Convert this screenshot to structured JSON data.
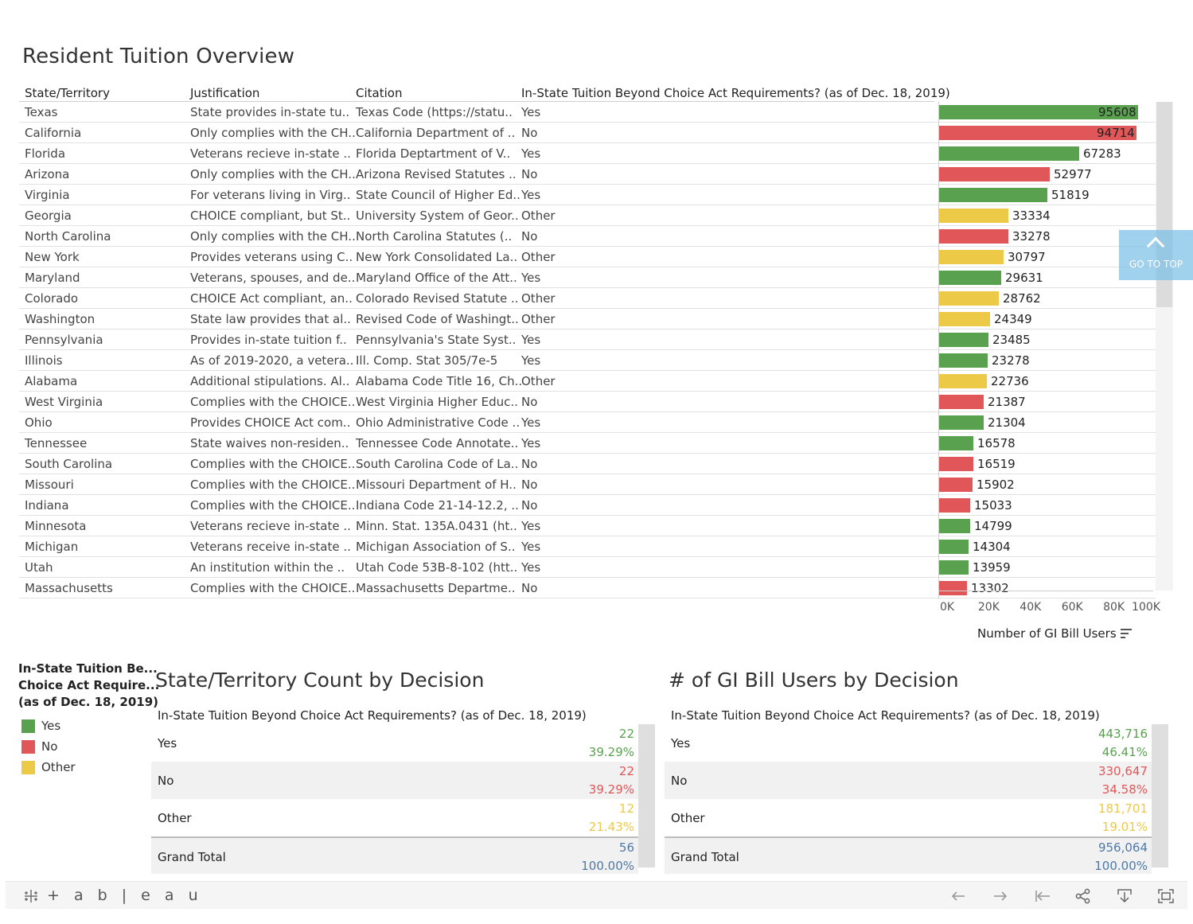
{
  "title": "Resident Tuition Overview",
  "colors": {
    "Yes": "#59a14f",
    "No": "#e15759",
    "Other": "#edc948",
    "total": "#4e79a7"
  },
  "columns": {
    "state": "State/Territory",
    "justification": "Justification",
    "citation": "Citation",
    "decision": "In-State Tuition Beyond Choice Act Requirements? (as of Dec. 18, 2019)"
  },
  "rows": [
    {
      "state": "Texas",
      "justification": "State provides in-state tu..",
      "citation": "Texas Code (https://statu..",
      "decision": "Yes",
      "users": 95608
    },
    {
      "state": "California",
      "justification": "Only complies with the CH..",
      "citation": "California Department of ..",
      "decision": "No",
      "users": 94714
    },
    {
      "state": "Florida",
      "justification": "Veterans recieve in-state ..",
      "citation": "Florida Deptartment of V..",
      "decision": "Yes",
      "users": 67283
    },
    {
      "state": "Arizona",
      "justification": "Only complies with the CH..",
      "citation": "Arizona Revised Statutes ..",
      "decision": "No",
      "users": 52977
    },
    {
      "state": "Virginia",
      "justification": "For veterans living in Virg..",
      "citation": "State Council of Higher Ed..",
      "decision": "Yes",
      "users": 51819
    },
    {
      "state": "Georgia",
      "justification": "CHOICE compliant, but St..",
      "citation": "University System of Geor..",
      "decision": "Other",
      "users": 33334
    },
    {
      "state": "North Carolina",
      "justification": "Only complies with the CH..",
      "citation": "North Carolina Statutes (..",
      "decision": "No",
      "users": 33278
    },
    {
      "state": "New York",
      "justification": "Provides veterans using C..",
      "citation": "New York Consolidated La..",
      "decision": "Other",
      "users": 30797
    },
    {
      "state": "Maryland",
      "justification": "Veterans, spouses, and de..",
      "citation": "Maryland Office of the Att..",
      "decision": "Yes",
      "users": 29631
    },
    {
      "state": "Colorado",
      "justification": "CHOICE Act compliant, an..",
      "citation": "Colorado Revised Statute ..",
      "decision": "Other",
      "users": 28762
    },
    {
      "state": "Washington",
      "justification": "State law provides that al..",
      "citation": "Revised Code of Washingt..",
      "decision": "Other",
      "users": 24349
    },
    {
      "state": "Pennsylvania",
      "justification": "Provides in-state tuition f..",
      "citation": "Pennsylvania's State Syst..",
      "decision": "Yes",
      "users": 23485
    },
    {
      "state": "Illinois",
      "justification": "As of 2019-2020, a vetera..",
      "citation": "Ill. Comp. Stat 305/7e-5",
      "decision": "Yes",
      "users": 23278
    },
    {
      "state": "Alabama",
      "justification": "Additional stipulations. Al..",
      "citation": "Alabama Code Title 16, Ch..",
      "decision": "Other",
      "users": 22736
    },
    {
      "state": "West Virginia",
      "justification": "Complies with the CHOICE..",
      "citation": "West Virginia Higher Educ..",
      "decision": "No",
      "users": 21387
    },
    {
      "state": "Ohio",
      "justification": "Provides CHOICE Act com..",
      "citation": "Ohio Administrative Code ..",
      "decision": "Yes",
      "users": 21304
    },
    {
      "state": "Tennessee",
      "justification": "State waives non-residen..",
      "citation": "Tennessee Code Annotate..",
      "decision": "Yes",
      "users": 16578
    },
    {
      "state": "South Carolina",
      "justification": "Complies with the CHOICE..",
      "citation": "South Carolina Code of La..",
      "decision": "No",
      "users": 16519
    },
    {
      "state": "Missouri",
      "justification": "Complies with the CHOICE..",
      "citation": "Missouri Department of H..",
      "decision": "No",
      "users": 15902
    },
    {
      "state": "Indiana",
      "justification": "Complies with the CHOICE..",
      "citation": "Indiana Code 21-14-12.2, ..",
      "decision": "No",
      "users": 15033
    },
    {
      "state": "Minnesota",
      "justification": "Veterans recieve in-state ..",
      "citation": "Minn. Stat. 135A.0431 (ht..",
      "decision": "Yes",
      "users": 14799
    },
    {
      "state": "Michigan",
      "justification": "Veterans receive in-state ..",
      "citation": "Michigan Association of S..",
      "decision": "Yes",
      "users": 14304
    },
    {
      "state": "Utah",
      "justification": "An institution within the ..",
      "citation": "Utah Code 53B-8-102 (htt..",
      "decision": "Yes",
      "users": 13959
    },
    {
      "state": "Massachusetts",
      "justification": "Complies with the CHOICE..",
      "citation": "Massachusetts Departme..",
      "decision": "No",
      "users": 13302
    }
  ],
  "axis": {
    "ticks": [
      "0K",
      "20K",
      "40K",
      "60K",
      "80K",
      "100K"
    ],
    "tick_values": [
      0,
      20000,
      40000,
      60000,
      80000,
      100000
    ],
    "max": 100000,
    "title": "Number of GI Bill Users"
  },
  "go_top_label": "GO TO TOP",
  "legend": {
    "title_lines": [
      "In-State Tuition Be...",
      "Choice Act Require...",
      "(as of Dec. 18, 2019)"
    ],
    "items": [
      "Yes",
      "No",
      "Other"
    ]
  },
  "count_panel": {
    "title": "State/Territory Count by Decision",
    "subtitle": "In-State Tuition Beyond Choice Act Requirements? (as of Dec. 18, 2019)",
    "rows": [
      {
        "label": "Yes",
        "value": "22",
        "pct": "39.29%",
        "color": "#59a14f"
      },
      {
        "label": "No",
        "value": "22",
        "pct": "39.29%",
        "color": "#e15759"
      },
      {
        "label": "Other",
        "value": "12",
        "pct": "21.43%",
        "color": "#edc948"
      },
      {
        "label": "Grand Total",
        "value": "56",
        "pct": "100.00%",
        "color": "#4e79a7"
      }
    ]
  },
  "users_panel": {
    "title": "# of GI Bill Users by Decision",
    "subtitle": "In-State Tuition Beyond Choice Act Requirements? (as of Dec. 18, 2019)",
    "rows": [
      {
        "label": "Yes",
        "value": "443,716",
        "pct": "46.41%",
        "color": "#59a14f"
      },
      {
        "label": "No",
        "value": "330,647",
        "pct": "34.58%",
        "color": "#e15759"
      },
      {
        "label": "Other",
        "value": "181,701",
        "pct": "19.01%",
        "color": "#edc948"
      },
      {
        "label": "Grand Total",
        "value": "956,064",
        "pct": "100.00%",
        "color": "#4e79a7"
      }
    ]
  },
  "footer": {
    "logo_text": "+ a b | e a u",
    "icons": [
      "undo-icon",
      "redo-icon",
      "revert-icon",
      "share-icon",
      "download-icon",
      "fullscreen-icon"
    ]
  }
}
